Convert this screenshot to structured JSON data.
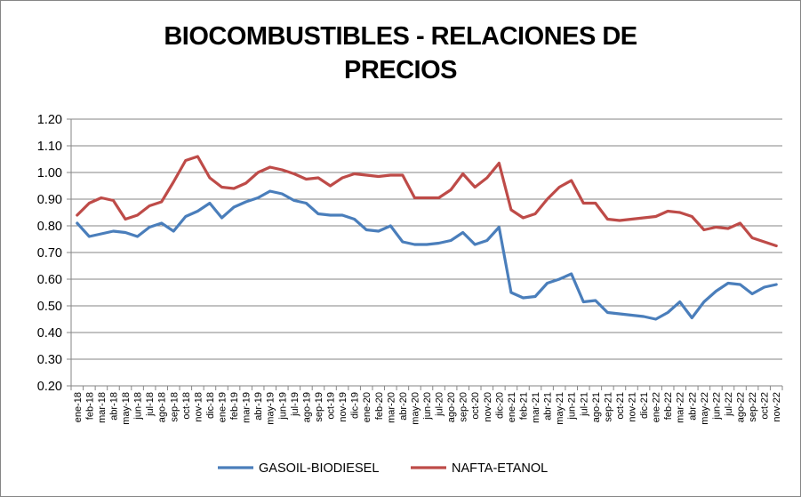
{
  "chart_data": {
    "type": "line",
    "title_line1": "BIOCOMBUSTIBLES - RELACIONES DE",
    "title_line2": "PRECIOS",
    "xlabel": "",
    "ylabel": "",
    "ylim": [
      0.2,
      1.2
    ],
    "yticks": [
      "0.20",
      "0.30",
      "0.40",
      "0.50",
      "0.60",
      "0.70",
      "0.80",
      "0.90",
      "1.00",
      "1.10",
      "1.20"
    ],
    "grid": "horizontal",
    "legend_position": "bottom",
    "categories": [
      "ene-18",
      "feb-18",
      "mar-18",
      "abr-18",
      "may-18",
      "jun-18",
      "jul-18",
      "ago-18",
      "sep-18",
      "oct-18",
      "nov-18",
      "dic-18",
      "ene-19",
      "feb-19",
      "mar-19",
      "abr-19",
      "may-19",
      "jun-19",
      "jul-19",
      "ago-19",
      "sep-19",
      "oct-19",
      "nov-19",
      "dic-19",
      "ene-20",
      "feb-20",
      "mar-20",
      "abr-20",
      "may-20",
      "jun-20",
      "jul-20",
      "ago-20",
      "sep-20",
      "oct-20",
      "nov-20",
      "dic-20",
      "ene-21",
      "feb-21",
      "mar-21",
      "abr-21",
      "may-21",
      "jun-21",
      "jul-21",
      "ago-21",
      "sep-21",
      "oct-21",
      "nov-21",
      "dic-21",
      "ene-22",
      "feb-22",
      "mar-22",
      "abr-22",
      "may-22",
      "jun-22",
      "jul-22",
      "ago-22",
      "sep-22",
      "oct-22",
      "nov-22"
    ],
    "series": [
      {
        "name": "GASOIL-BIODIESEL",
        "color": "#4A7EBB",
        "values": [
          0.81,
          0.76,
          0.77,
          0.78,
          0.775,
          0.76,
          0.795,
          0.81,
          0.78,
          0.835,
          0.855,
          0.885,
          0.83,
          0.87,
          0.89,
          0.905,
          0.93,
          0.92,
          0.895,
          0.885,
          0.845,
          0.84,
          0.84,
          0.825,
          0.785,
          0.78,
          0.8,
          0.74,
          0.73,
          0.73,
          0.735,
          0.745,
          0.775,
          0.73,
          0.745,
          0.795,
          0.55,
          0.53,
          0.535,
          0.585,
          0.6,
          0.62,
          0.515,
          0.52,
          0.475,
          0.47,
          0.465,
          0.46,
          0.45,
          0.475,
          0.515,
          0.455,
          0.515,
          0.555,
          0.585,
          0.58,
          0.545,
          0.57,
          0.58
        ]
      },
      {
        "name": "NAFTA-ETANOL",
        "color": "#BE4B48",
        "values": [
          0.84,
          0.885,
          0.905,
          0.895,
          0.825,
          0.84,
          0.875,
          0.89,
          0.965,
          1.045,
          1.06,
          0.98,
          0.945,
          0.94,
          0.96,
          1.0,
          1.02,
          1.01,
          0.995,
          0.975,
          0.98,
          0.95,
          0.98,
          0.995,
          0.99,
          0.985,
          0.99,
          0.99,
          0.905,
          0.905,
          0.905,
          0.935,
          0.995,
          0.945,
          0.98,
          1.035,
          0.86,
          0.83,
          0.845,
          0.9,
          0.945,
          0.97,
          0.885,
          0.885,
          0.825,
          0.82,
          0.825,
          0.83,
          0.835,
          0.855,
          0.85,
          0.835,
          0.785,
          0.795,
          0.79,
          0.81,
          0.755,
          0.74,
          0.725
        ]
      }
    ]
  }
}
